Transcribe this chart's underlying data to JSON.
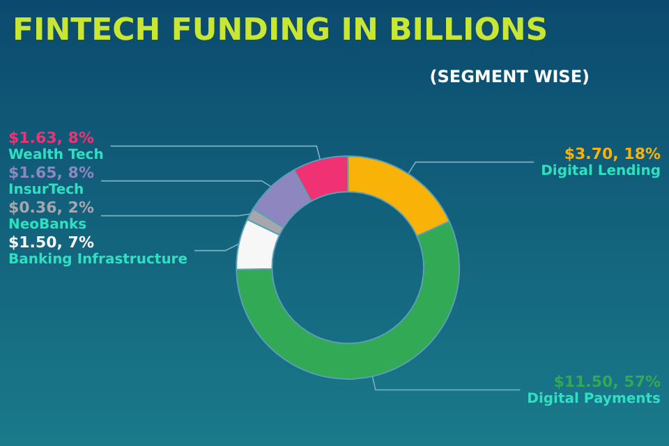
{
  "chart_data": {
    "type": "donut",
    "title": "FINTECH FUNDING IN BILLIONS",
    "subtitle": "(SEGMENT WISE)",
    "categories": [
      "Digital Lending",
      "Digital Payments",
      "Banking Infrastructure",
      "NeoBanks",
      "InsurTech",
      "Wealth Tech"
    ],
    "values": [
      3.7,
      11.5,
      1.5,
      0.36,
      1.65,
      1.63
    ],
    "colors": [
      "#f9b208",
      "#31a955",
      "#f7f7f7",
      "#a6a6ad",
      "#8e86bf",
      "#f03274"
    ],
    "value_labels": [
      "$3.70, 18%",
      "$11.50, 57%",
      "$1.50, 7%",
      "$0.36, 2%",
      "$1.65, 8%",
      "$1.63, 8%"
    ],
    "legend": false
  }
}
